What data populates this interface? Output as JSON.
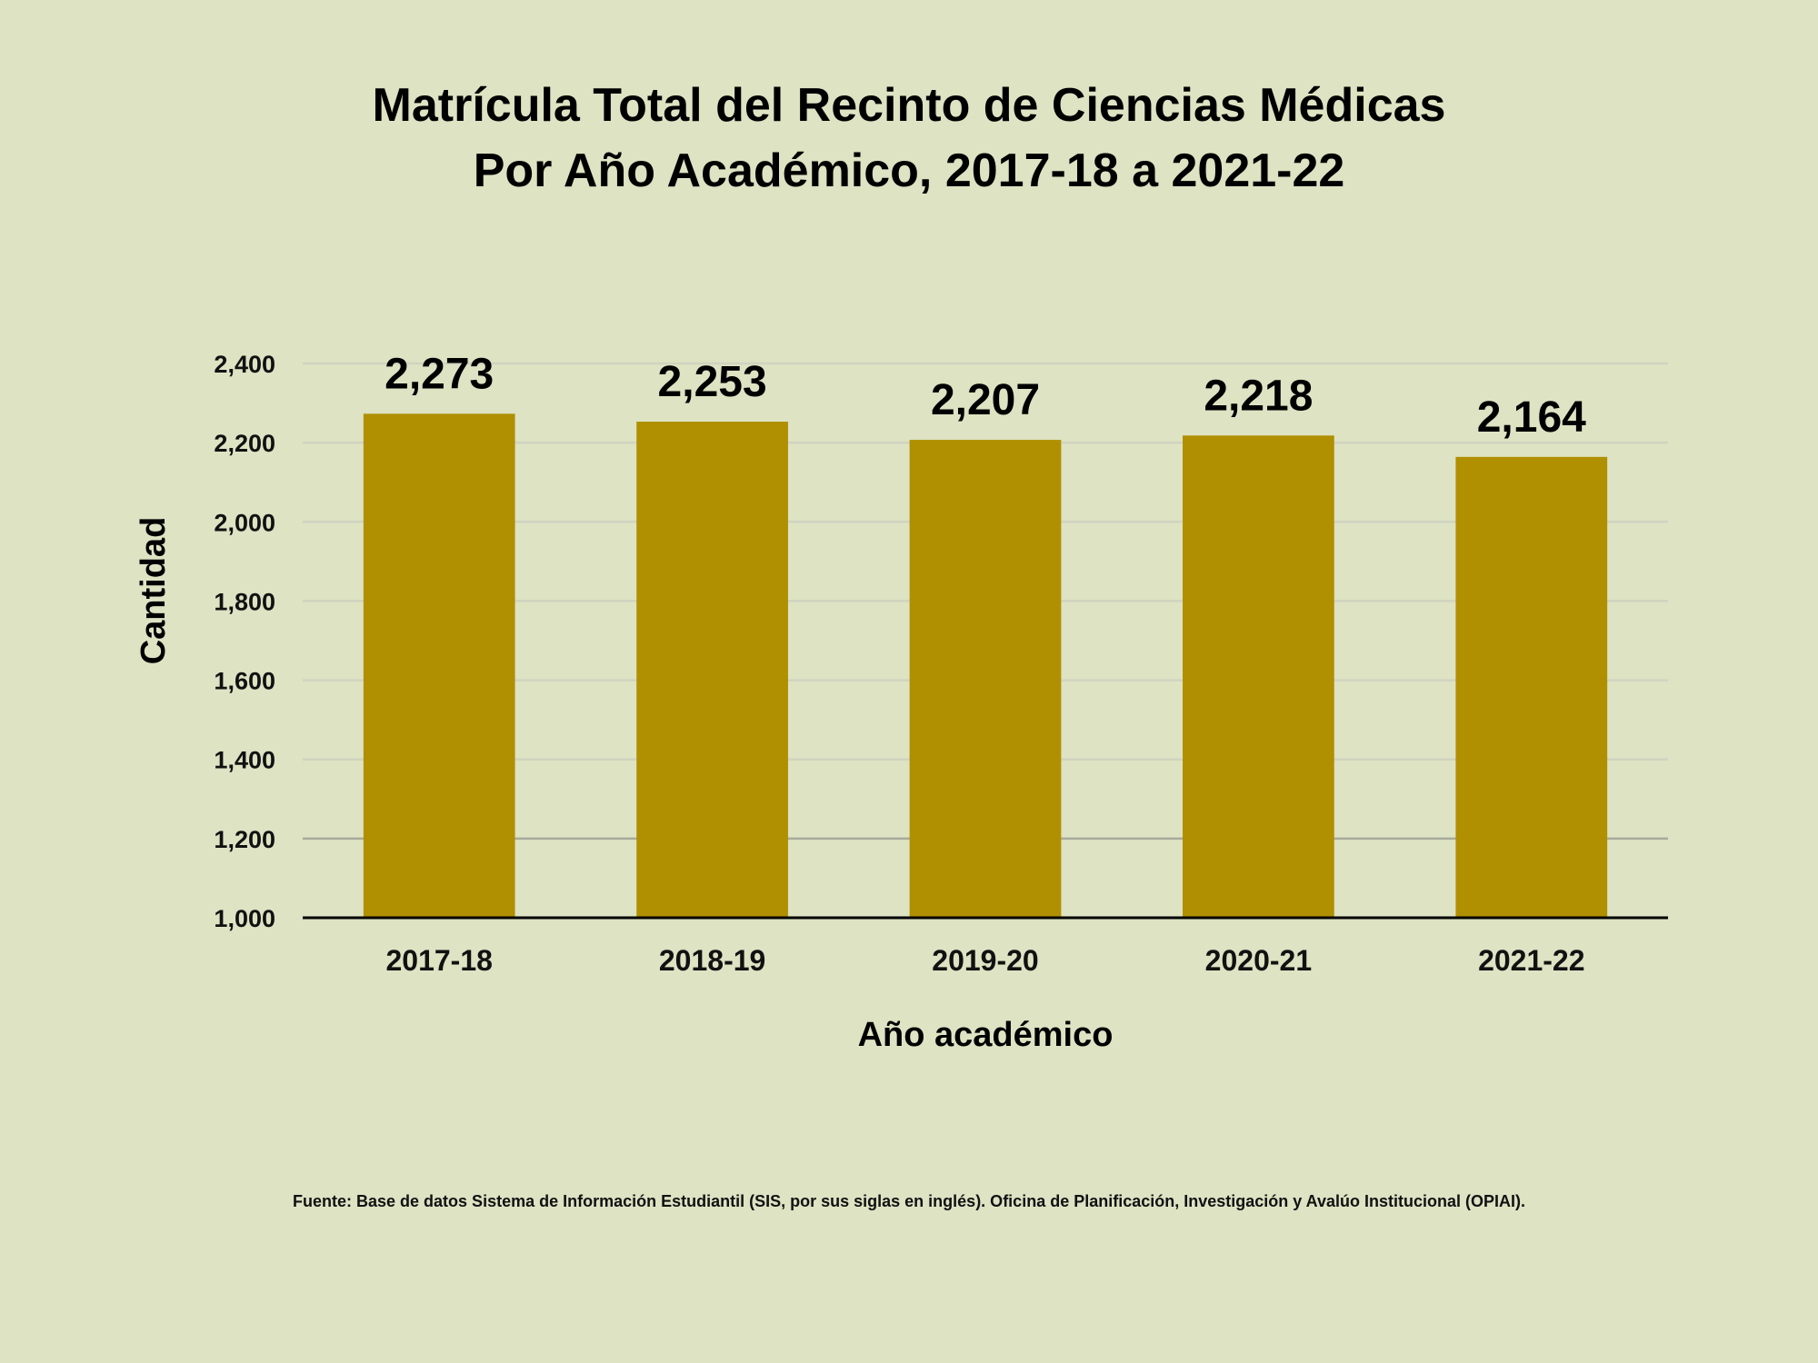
{
  "chart_data": {
    "type": "bar",
    "title_lines": [
      "Matrícula Total del Recinto de Ciencias Médicas",
      "Por Año Académico, 2017-18 a 2021-22"
    ],
    "categories": [
      "2017-18",
      "2018-19",
      "2019-20",
      "2020-21",
      "2021-22"
    ],
    "values": [
      2273,
      2253,
      2207,
      2218,
      2164
    ],
    "data_labels": [
      "2,273",
      "2,253",
      "2,207",
      "2,218",
      "2,164"
    ],
    "xlabel": "Año académico",
    "ylabel": "Cantidad",
    "ylim": [
      1000,
      2400
    ],
    "yticks": [
      1000,
      1200,
      1400,
      1600,
      1800,
      2000,
      2200,
      2400
    ],
    "ytick_labels": [
      "1,000",
      "1,200",
      "1,400",
      "1,600",
      "1,800",
      "2,000",
      "2,200",
      "2,400"
    ],
    "grid": true,
    "bar_color": "#b08f00",
    "background_color": "#dde3c3"
  },
  "source_note": "Fuente: Base de datos  Sistema de Información Estudiantil (SIS, por sus siglas en inglés). Oficina de Planificación, Investigación y Avalúo Institucional (OPIAI)."
}
